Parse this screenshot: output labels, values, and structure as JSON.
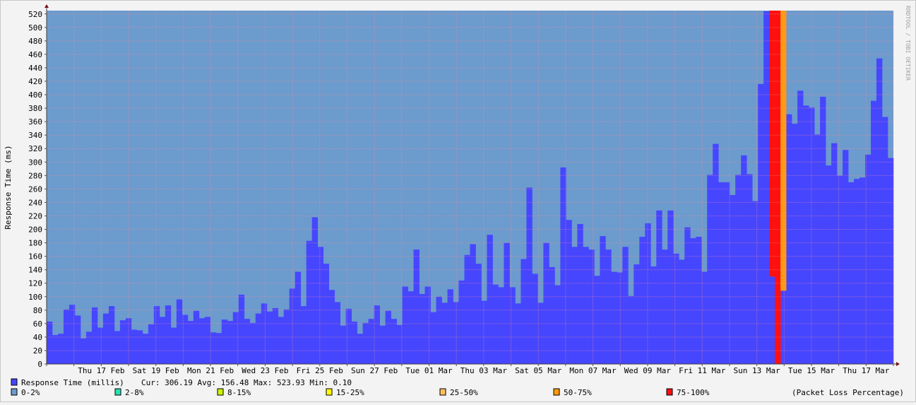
{
  "chart_data": {
    "type": "bar",
    "title": "",
    "ylabel": "Response Time (ms)",
    "xlabel": "",
    "ylim": [
      0,
      525
    ],
    "yticks": [
      0,
      20,
      40,
      60,
      80,
      100,
      120,
      140,
      160,
      180,
      200,
      220,
      240,
      260,
      280,
      300,
      320,
      340,
      360,
      380,
      400,
      420,
      440,
      460,
      480,
      500,
      520
    ],
    "date_range": [
      "2022-02-15",
      "2022-03-17"
    ],
    "xtick_labels": [
      "Thu 17 Feb",
      "Sat 19 Feb",
      "Mon 21 Feb",
      "Wed 23 Feb",
      "Fri 25 Feb",
      "Sun 27 Feb",
      "Tue 01 Mar",
      "Thu 03 Mar",
      "Sat 05 Mar",
      "Mon 07 Mar",
      "Wed 09 Mar",
      "Fri 11 Mar",
      "Sun 13 Mar",
      "Tue 15 Mar",
      "Thu 17 Mar"
    ],
    "grid": true,
    "background_color": "#6c9bce",
    "series_color": "#4646ff",
    "series": [
      {
        "name": "Response Time (millis)",
        "values": [
          63,
          43,
          45,
          81,
          88,
          72,
          38,
          48,
          84,
          54,
          75,
          86,
          49,
          65,
          68,
          51,
          50,
          45,
          59,
          86,
          70,
          87,
          54,
          96,
          73,
          64,
          79,
          68,
          70,
          47,
          46,
          66,
          64,
          77,
          103,
          67,
          61,
          75,
          90,
          78,
          83,
          70,
          81,
          112,
          137,
          86,
          183,
          218,
          174,
          149,
          110,
          92,
          57,
          82,
          63,
          45,
          61,
          67,
          87,
          57,
          79,
          67,
          58,
          115,
          108,
          170,
          104,
          115,
          77,
          100,
          91,
          111,
          92,
          124,
          162,
          178,
          149,
          94,
          192,
          118,
          114,
          180,
          114,
          90,
          156,
          262,
          134,
          91,
          180,
          144,
          117,
          292,
          214,
          174,
          208,
          174,
          170,
          131,
          190,
          170,
          137,
          136,
          174,
          101,
          148,
          189,
          209,
          145,
          228,
          170,
          228,
          164,
          155,
          203,
          187,
          189,
          137,
          281,
          327,
          270,
          270,
          251,
          281,
          310,
          282,
          242,
          416,
          524,
          130,
          0,
          109,
          371,
          357,
          406,
          384,
          381,
          341,
          397,
          295,
          328,
          280,
          318,
          270,
          275,
          277,
          311,
          391,
          454,
          367,
          306
        ]
      }
    ],
    "loss_markers": [
      {
        "index": 128,
        "level": "75-100%"
      },
      {
        "index": 129,
        "level": "75-100%"
      },
      {
        "index": 130,
        "level": "50-75%"
      }
    ],
    "legend": {
      "series_label": "Response Time (millis)",
      "stats": "Cur: 306.19   Avg: 156.48   Max: 523.93   Min:  0.10",
      "loss_items": [
        {
          "label": "0-2%",
          "color": "#6c9bce"
        },
        {
          "label": "2-8%",
          "color": "#28e0b0"
        },
        {
          "label": "8-15%",
          "color": "#ccf20a"
        },
        {
          "label": "15-25%",
          "color": "#ffff00"
        },
        {
          "label": "25-50%",
          "color": "#ffc060"
        },
        {
          "label": "50-75%",
          "color": "#ff9a10"
        },
        {
          "label": "75-100%",
          "color": "#ff1010"
        }
      ],
      "loss_note": "(Packet Loss Percentage)"
    },
    "watermark": "RRDTOOL / TOBI OETIKER"
  }
}
